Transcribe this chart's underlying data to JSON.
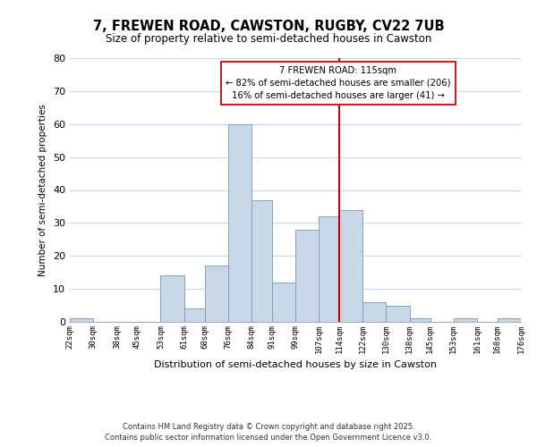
{
  "title": "7, FREWEN ROAD, CAWSTON, RUGBY, CV22 7UB",
  "subtitle": "Size of property relative to semi-detached houses in Cawston",
  "xlabel": "Distribution of semi-detached houses by size in Cawston",
  "ylabel": "Number of semi-detached properties",
  "bins": [
    22,
    30,
    38,
    45,
    53,
    61,
    68,
    76,
    84,
    91,
    99,
    107,
    114,
    122,
    130,
    138,
    145,
    153,
    161,
    168,
    176
  ],
  "bin_labels": [
    "22sqm",
    "30sqm",
    "38sqm",
    "45sqm",
    "53sqm",
    "61sqm",
    "68sqm",
    "76sqm",
    "84sqm",
    "91sqm",
    "99sqm",
    "107sqm",
    "114sqm",
    "122sqm",
    "130sqm",
    "138sqm",
    "145sqm",
    "153sqm",
    "161sqm",
    "168sqm",
    "176sqm"
  ],
  "counts": [
    1,
    0,
    0,
    0,
    14,
    4,
    17,
    60,
    37,
    12,
    28,
    32,
    34,
    6,
    5,
    1,
    0,
    1,
    0,
    1
  ],
  "bar_color": "#c8d8e8",
  "bar_edgecolor": "#7799bb",
  "vline_x": 114,
  "vline_color": "#cc0000",
  "annotation_title": "7 FREWEN ROAD: 115sqm",
  "annotation_line1": "← 82% of semi-detached houses are smaller (206)",
  "annotation_line2": "16% of semi-detached houses are larger (41) →",
  "annotation_box_color": "#ffffff",
  "annotation_box_edgecolor": "#cc0000",
  "ylim": [
    0,
    80
  ],
  "yticks": [
    0,
    10,
    20,
    30,
    40,
    50,
    60,
    70,
    80
  ],
  "footnote1": "Contains HM Land Registry data © Crown copyright and database right 2025.",
  "footnote2": "Contains public sector information licensed under the Open Government Licence v3.0.",
  "bg_color": "#ffffff",
  "grid_color": "#c8d8e8"
}
